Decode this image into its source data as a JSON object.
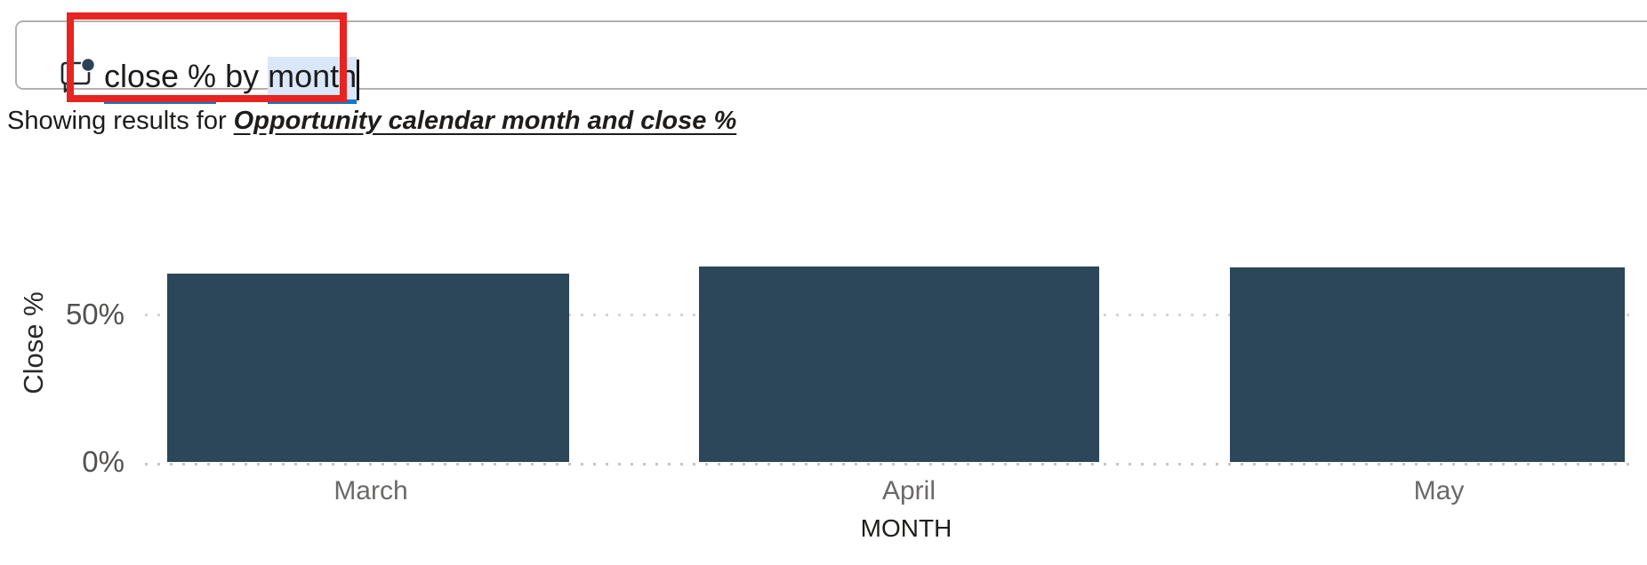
{
  "query_bar": {
    "value": "close % by month",
    "segments": [
      {
        "text": "close %",
        "underlined": true,
        "selected": false
      },
      {
        "text": " by ",
        "underlined": false,
        "selected": false
      },
      {
        "text": "month",
        "underlined": true,
        "selected": true
      }
    ],
    "icon": "qna-comment-icon"
  },
  "annotation": {
    "type": "red-box-highlight",
    "color": "#e62421"
  },
  "result_line": {
    "prefix": "Showing results for ",
    "interpretation": "Opportunity calendar month and close %"
  },
  "chart_data": {
    "type": "bar",
    "categories": [
      "March",
      "April",
      "May"
    ],
    "values": [
      64.2,
      66.7,
      66.4
    ],
    "value_unit": "%",
    "title": "",
    "xlabel": "MONTH",
    "ylabel": "Close %",
    "yticks": [
      "0%",
      "50%"
    ],
    "ylim": [
      0,
      70
    ],
    "grid": "dotted horizontal lines at 0% and 50%",
    "legend": "none",
    "bar_color": "#2b4759"
  },
  "colors": {
    "accent_blue_underline": "#0d78cf",
    "selection_highlight": "#d9e7f8",
    "bar_fill": "#2b4759",
    "annotation_red": "#e62421",
    "axis_label_gray": "#6b6968",
    "tick_label_gray": "#53514f"
  }
}
